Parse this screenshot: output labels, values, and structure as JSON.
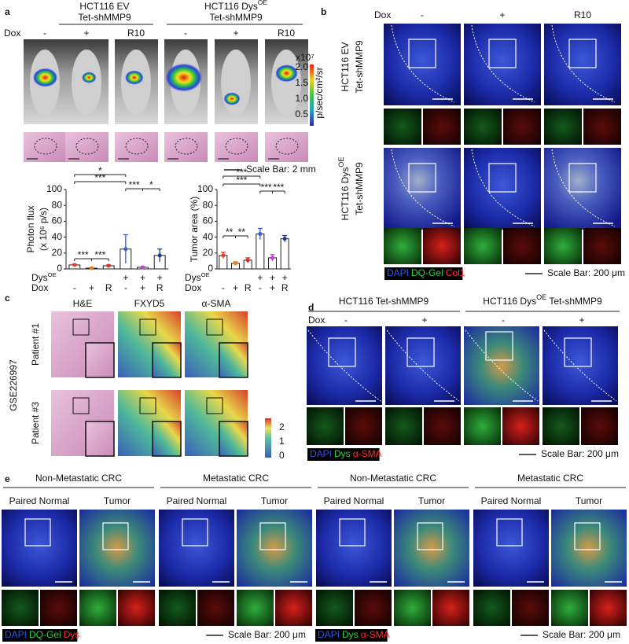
{
  "panel_a": {
    "label": "a",
    "group1": [
      "HCT116 EV",
      "Tet-shMMP9"
    ],
    "group2": [
      "HCT116 Dys",
      "OE",
      "Tet-shMMP9"
    ],
    "dox": "Dox",
    "conditions": [
      "-",
      "+",
      "R10",
      "-",
      "+",
      "R10"
    ],
    "colorbar": {
      "exponent": "x10⁷",
      "ticks": [
        "2.0",
        "1.5",
        "1.0",
        "0.5"
      ],
      "unit": "p/sec/cm²/sr"
    },
    "scale_bar": "Scale Bar: 2 mm"
  },
  "chart_data": [
    {
      "type": "bar",
      "ylabel": [
        "Photon flux",
        "(x 10⁶ p/s)"
      ],
      "rows": [
        {
          "name": "Dys",
          "sup": "OE",
          "labels": [
            null,
            null,
            null,
            "+",
            "+",
            "+"
          ]
        },
        {
          "name": "Dox",
          "labels": [
            "-",
            "+",
            "R",
            "-",
            "+",
            "R"
          ]
        }
      ],
      "values": [
        5,
        1,
        4,
        25,
        2,
        17
      ],
      "errors": [
        1,
        0.5,
        1,
        18,
        1,
        8
      ],
      "colors": [
        "#e8402c",
        "#f07b1a",
        "#d6332a",
        "#3a5bd9",
        "#c040d0",
        "#1f3c88"
      ],
      "ylim": [
        0,
        100
      ],
      "yticks": [
        0,
        20,
        40,
        60,
        80,
        100
      ],
      "significance": [
        "*",
        "***",
        "***",
        "*",
        "***",
        "***"
      ]
    },
    {
      "type": "bar",
      "ylabel": [
        "Tumor area (%)"
      ],
      "rows": [
        {
          "name": "Dys",
          "sup": "OE",
          "labels": [
            null,
            null,
            null,
            "+",
            "+",
            "+"
          ]
        },
        {
          "name": "Dox",
          "labels": [
            "-",
            "+",
            "R",
            "-",
            "+",
            "R"
          ]
        }
      ],
      "values": [
        17,
        7,
        11,
        44,
        14,
        38
      ],
      "errors": [
        4,
        2,
        3,
        7,
        4,
        4
      ],
      "colors": [
        "#e8402c",
        "#f07b1a",
        "#d6332a",
        "#3a5bd9",
        "#c040d0",
        "#1f3c88"
      ],
      "ylim": [
        0,
        100
      ],
      "yticks": [
        0,
        20,
        40,
        60,
        80,
        100
      ],
      "significance": [
        "***",
        "***",
        "***",
        "***",
        "**",
        "**"
      ]
    }
  ],
  "panel_b": {
    "label": "b",
    "dox": "Dox",
    "conditions": [
      "-",
      "+",
      "R10"
    ],
    "rows": [
      [
        "HCT116 EV",
        "Tet-shMMP9"
      ],
      [
        "HCT116 Dys",
        "OE",
        "Tet-shMMP9"
      ]
    ],
    "legend": [
      "DAPI",
      "DQ-Gel",
      "Col1"
    ],
    "scale_bar": "Scale Bar: 200 μm"
  },
  "panel_c": {
    "label": "c",
    "columns": [
      "H&E",
      "FXYD5",
      "α-SMA"
    ],
    "dataset": "GSE226997",
    "rows": [
      "Patient #1",
      "Patient #3"
    ],
    "colorbar_ticks": [
      "2",
      "1",
      "0"
    ]
  },
  "panel_d": {
    "label": "d",
    "group1": "HCT116 Tet-shMMP9",
    "group2": [
      "HCT116 Dys",
      "OE",
      " Tet-shMMP9"
    ],
    "dox": "Dox",
    "conditions": [
      "-",
      "+",
      "-",
      "+"
    ],
    "legend": [
      "DAPI",
      "Dys",
      "α-SMA"
    ],
    "scale_bar": "Scale Bar: 200 μm"
  },
  "panel_e": {
    "label": "e",
    "groups": [
      "Non-Metastatic CRC",
      "Metastatic CRC",
      "Non-Metastatic CRC",
      "Metastatic CRC"
    ],
    "subheaders": [
      [
        "Paired Normal",
        "Tumor"
      ],
      [
        "Paired Normal",
        "Tumor"
      ],
      [
        "Paired Normal",
        "Tumor"
      ],
      [
        "Paired Normal",
        "Tumor"
      ]
    ],
    "legend1": [
      "DAPI",
      "DQ-Gel",
      "Dys"
    ],
    "legend2": [
      "DAPI",
      "Dys",
      "α-SMA"
    ],
    "scale_bars": [
      "Scale Bar: 200 μm",
      "Scale Bar: 200 μm"
    ]
  }
}
